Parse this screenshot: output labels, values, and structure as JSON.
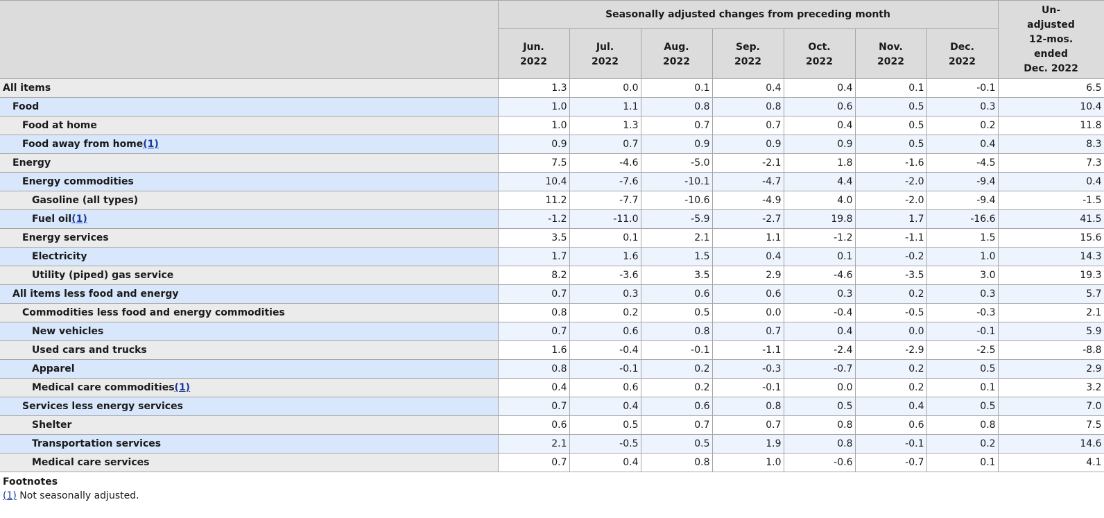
{
  "header": {
    "group_title": "Seasonally adjusted changes from preceding month",
    "months": [
      {
        "line1": "Jun.",
        "line2": "2022"
      },
      {
        "line1": "Jul.",
        "line2": "2022"
      },
      {
        "line1": "Aug.",
        "line2": "2022"
      },
      {
        "line1": "Sep.",
        "line2": "2022"
      },
      {
        "line1": "Oct.",
        "line2": "2022"
      },
      {
        "line1": "Nov.",
        "line2": "2022"
      },
      {
        "line1": "Dec.",
        "line2": "2022"
      }
    ],
    "unadjusted_lines": [
      "Un-",
      "adjusted",
      "12-mos.",
      "ended",
      "Dec. 2022"
    ]
  },
  "rows": [
    {
      "label": "All items",
      "indent": 0,
      "footnote": "",
      "values": [
        "1.3",
        "0.0",
        "0.1",
        "0.4",
        "0.4",
        "0.1",
        "-0.1",
        "6.5"
      ]
    },
    {
      "label": "Food",
      "indent": 1,
      "footnote": "",
      "values": [
        "1.0",
        "1.1",
        "0.8",
        "0.8",
        "0.6",
        "0.5",
        "0.3",
        "10.4"
      ]
    },
    {
      "label": "Food at home",
      "indent": 2,
      "footnote": "",
      "values": [
        "1.0",
        "1.3",
        "0.7",
        "0.7",
        "0.4",
        "0.5",
        "0.2",
        "11.8"
      ]
    },
    {
      "label": "Food away from home",
      "indent": 2,
      "footnote": "(1)",
      "values": [
        "0.9",
        "0.7",
        "0.9",
        "0.9",
        "0.9",
        "0.5",
        "0.4",
        "8.3"
      ]
    },
    {
      "label": "Energy",
      "indent": 1,
      "footnote": "",
      "values": [
        "7.5",
        "-4.6",
        "-5.0",
        "-2.1",
        "1.8",
        "-1.6",
        "-4.5",
        "7.3"
      ]
    },
    {
      "label": "Energy commodities",
      "indent": 2,
      "footnote": "",
      "values": [
        "10.4",
        "-7.6",
        "-10.1",
        "-4.7",
        "4.4",
        "-2.0",
        "-9.4",
        "0.4"
      ]
    },
    {
      "label": "Gasoline (all types)",
      "indent": 3,
      "footnote": "",
      "values": [
        "11.2",
        "-7.7",
        "-10.6",
        "-4.9",
        "4.0",
        "-2.0",
        "-9.4",
        "-1.5"
      ]
    },
    {
      "label": "Fuel oil",
      "indent": 3,
      "footnote": "(1)",
      "values": [
        "-1.2",
        "-11.0",
        "-5.9",
        "-2.7",
        "19.8",
        "1.7",
        "-16.6",
        "41.5"
      ]
    },
    {
      "label": "Energy services",
      "indent": 2,
      "footnote": "",
      "values": [
        "3.5",
        "0.1",
        "2.1",
        "1.1",
        "-1.2",
        "-1.1",
        "1.5",
        "15.6"
      ]
    },
    {
      "label": "Electricity",
      "indent": 3,
      "footnote": "",
      "values": [
        "1.7",
        "1.6",
        "1.5",
        "0.4",
        "0.1",
        "-0.2",
        "1.0",
        "14.3"
      ]
    },
    {
      "label": "Utility (piped) gas service",
      "indent": 3,
      "footnote": "",
      "values": [
        "8.2",
        "-3.6",
        "3.5",
        "2.9",
        "-4.6",
        "-3.5",
        "3.0",
        "19.3"
      ]
    },
    {
      "label": "All items less food and energy",
      "indent": 1,
      "footnote": "",
      "values": [
        "0.7",
        "0.3",
        "0.6",
        "0.6",
        "0.3",
        "0.2",
        "0.3",
        "5.7"
      ]
    },
    {
      "label": "Commodities less food and energy commodities",
      "indent": 2,
      "footnote": "",
      "values": [
        "0.8",
        "0.2",
        "0.5",
        "0.0",
        "-0.4",
        "-0.5",
        "-0.3",
        "2.1"
      ]
    },
    {
      "label": "New vehicles",
      "indent": 3,
      "footnote": "",
      "values": [
        "0.7",
        "0.6",
        "0.8",
        "0.7",
        "0.4",
        "0.0",
        "-0.1",
        "5.9"
      ]
    },
    {
      "label": "Used cars and trucks",
      "indent": 3,
      "footnote": "",
      "values": [
        "1.6",
        "-0.4",
        "-0.1",
        "-1.1",
        "-2.4",
        "-2.9",
        "-2.5",
        "-8.8"
      ]
    },
    {
      "label": "Apparel",
      "indent": 3,
      "footnote": "",
      "values": [
        "0.8",
        "-0.1",
        "0.2",
        "-0.3",
        "-0.7",
        "0.2",
        "0.5",
        "2.9"
      ]
    },
    {
      "label": "Medical care commodities",
      "indent": 3,
      "footnote": "(1)",
      "values": [
        "0.4",
        "0.6",
        "0.2",
        "-0.1",
        "0.0",
        "0.2",
        "0.1",
        "3.2"
      ]
    },
    {
      "label": "Services less energy services",
      "indent": 2,
      "footnote": "",
      "values": [
        "0.7",
        "0.4",
        "0.6",
        "0.8",
        "0.5",
        "0.4",
        "0.5",
        "7.0"
      ]
    },
    {
      "label": "Shelter",
      "indent": 3,
      "footnote": "",
      "values": [
        "0.6",
        "0.5",
        "0.7",
        "0.7",
        "0.8",
        "0.6",
        "0.8",
        "7.5"
      ]
    },
    {
      "label": "Transportation services",
      "indent": 3,
      "footnote": "",
      "values": [
        "2.1",
        "-0.5",
        "0.5",
        "1.9",
        "0.8",
        "-0.1",
        "0.2",
        "14.6"
      ]
    },
    {
      "label": "Medical care services",
      "indent": 3,
      "footnote": "",
      "values": [
        "0.7",
        "0.4",
        "0.8",
        "1.0",
        "-0.6",
        "-0.7",
        "0.1",
        "4.1"
      ]
    }
  ],
  "footnotes": {
    "title": "Footnotes",
    "items": [
      {
        "marker": "(1)",
        "text": " Not seasonally adjusted."
      }
    ]
  }
}
